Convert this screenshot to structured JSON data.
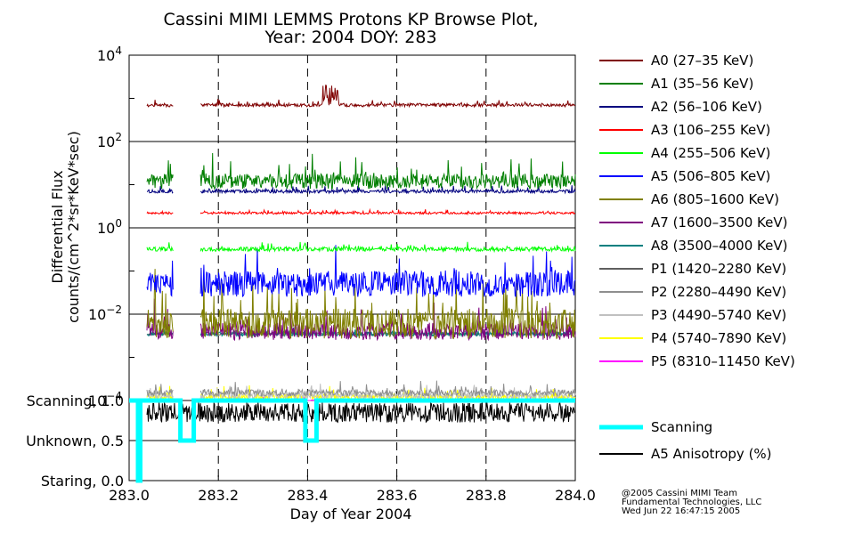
{
  "chart_data": {
    "type": "line",
    "title": "Cassini MIMI LEMMS Protons KP Browse Plot,",
    "subtitle": "Year: 2004 DOY: 283",
    "xlabel": "Day of Year 2004",
    "ylabel": "Differential Flux",
    "ylabel2": "counts/(cm^2*sr*KeV*sec)",
    "xlim": [
      283.0,
      284.0
    ],
    "xticks": [
      "283.0",
      "283.2",
      "283.4",
      "283.6",
      "283.8",
      "284.0"
    ],
    "xtick_values": [
      283.0,
      283.2,
      283.4,
      283.6,
      283.8,
      284.0
    ],
    "yscale": "log",
    "ylim": [
      0.0001,
      10000
    ],
    "yticks": [
      {
        "base": "10",
        "exp": "4",
        "value": 10000
      },
      {
        "base": "10",
        "exp": "2",
        "value": 100
      },
      {
        "base": "10",
        "exp": "0",
        "value": 1
      },
      {
        "base": "10",
        "exp": "−2",
        "value": 0.01
      },
      {
        "base": "10",
        "exp": "−4",
        "value": 0.0001
      }
    ],
    "series": [
      {
        "name": "A0 (27–35 KeV)",
        "color": "#7f0000",
        "level": 700,
        "min_x": 283.04,
        "gaps": [
          [
            283.1,
            283.16
          ]
        ]
      },
      {
        "name": "A1 (35–56 KeV)",
        "color": "#007f00",
        "level": 12,
        "min_x": 283.04,
        "gaps": [
          [
            283.1,
            283.16
          ]
        ]
      },
      {
        "name": "A2 (56–106 KeV)",
        "color": "#00007f",
        "level": 7,
        "min_x": 283.04,
        "gaps": [
          [
            283.1,
            283.16
          ]
        ]
      },
      {
        "name": "A3 (106–255 KeV)",
        "color": "#ff0000",
        "level": 2.2,
        "min_x": 283.04,
        "gaps": [
          [
            283.1,
            283.16
          ]
        ]
      },
      {
        "name": "A4 (255–506 KeV)",
        "color": "#00ff00",
        "level": 0.32,
        "min_x": 283.04,
        "gaps": [
          [
            283.1,
            283.16
          ]
        ]
      },
      {
        "name": "A5 (506–805 KeV)",
        "color": "#0000ff",
        "level": 0.05,
        "min_x": 283.04,
        "gaps": [
          [
            283.1,
            283.16
          ]
        ]
      },
      {
        "name": "A6 (805–1600 KeV)",
        "color": "#7f7f00",
        "level": 0.006,
        "min_x": 283.04,
        "gaps": [
          [
            283.1,
            283.16
          ]
        ]
      },
      {
        "name": "A7 (1600–3500 KeV)",
        "color": "#7f007f",
        "level": 0.004,
        "min_x": 283.04,
        "gaps": [
          [
            283.1,
            283.16
          ]
        ]
      },
      {
        "name": "A8 (3500–4000 KeV)",
        "color": "#007f7f",
        "level": 0.0035,
        "min_x": 283.04,
        "gaps": [
          [
            283.1,
            283.16
          ]
        ]
      },
      {
        "name": "P1 (1420–2280 KeV)",
        "color": "#5f5f5f",
        "level": 0.0035,
        "min_x": 283.04,
        "gaps": [
          [
            283.1,
            283.16
          ]
        ]
      },
      {
        "name": "P2 (2280–4490 KeV)",
        "color": "#8f8f8f",
        "level": 0.00015,
        "min_x": 283.04,
        "gaps": [
          [
            283.1,
            283.16
          ]
        ]
      },
      {
        "name": "P3 (4490–5740 KeV)",
        "color": "#c0c0c0",
        "level": 0.00013,
        "min_x": 283.04,
        "gaps": [
          [
            283.1,
            283.16
          ]
        ]
      },
      {
        "name": "P4 (5740–7890 KeV)",
        "color": "#ffff00",
        "level": 0.00012,
        "min_x": 283.04,
        "gaps": [
          [
            283.1,
            283.16
          ]
        ]
      },
      {
        "name": "P5 (8310–11450 KeV)",
        "color": "#ff00ff",
        "level": 0.0001,
        "min_x": 283.04,
        "gaps": [
          [
            283.1,
            283.16
          ]
        ]
      }
    ],
    "lower_panel": {
      "ylim": [
        0.0,
        1.0
      ],
      "yticks": [
        "Scanning, 1.0",
        "Unknown, 0.5",
        "Staring, 0.0"
      ],
      "series": [
        {
          "name": "Scanning",
          "color": "#00ffff",
          "x": [
            283.0,
            283.02,
            283.02,
            283.025,
            283.025,
            283.115,
            283.115,
            283.145,
            283.145,
            283.395,
            283.395,
            283.42,
            283.42,
            284.0
          ],
          "y": [
            1.0,
            1.0,
            0.0,
            0.0,
            1.0,
            1.0,
            0.5,
            0.5,
            1.0,
            1.0,
            0.5,
            0.5,
            1.0,
            1.0
          ]
        },
        {
          "name": "A5 Anisotropy (%)",
          "color": "#000000",
          "level": 0.85
        }
      ]
    },
    "grid": true,
    "legend": "right"
  },
  "footer": {
    "line1": "@2005 Cassini MIMI Team",
    "line2": "Fundamental Technologies, LLC",
    "line3": "Wed Jun 22 16:47:15 2005"
  }
}
